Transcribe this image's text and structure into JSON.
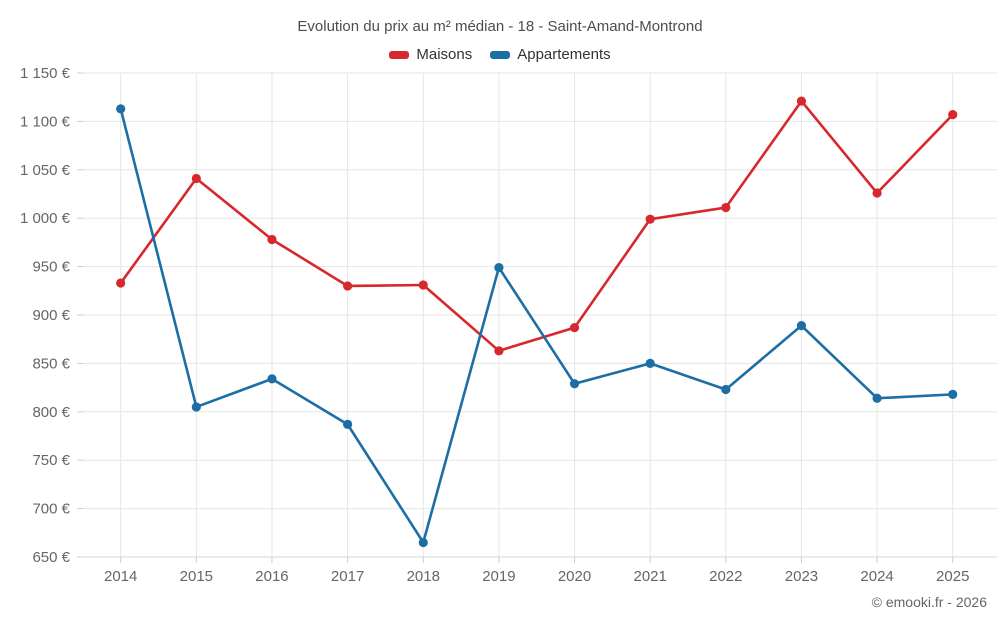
{
  "footer": "© emooki.fr - 2026",
  "styles": {
    "grid_color": "#e6e6e6",
    "axis_line_color": "#d4d4d4",
    "tick_color": "#cccccc",
    "label_color": "#666666",
    "title_color": "#4d4d4d",
    "background": "#ffffff"
  },
  "chart_data": {
    "type": "line",
    "title": "Evolution du prix au m² médian - 18 - Saint-Amand-Montrond",
    "categories": [
      "2014",
      "2015",
      "2016",
      "2017",
      "2018",
      "2019",
      "2020",
      "2021",
      "2022",
      "2023",
      "2024",
      "2025"
    ],
    "series": [
      {
        "name": "Maisons",
        "color": "#d7282e",
        "values": [
          933,
          1041,
          978,
          930,
          931,
          863,
          887,
          999,
          1011,
          1121,
          1026,
          1107
        ]
      },
      {
        "name": "Appartements",
        "color": "#1c6ea4",
        "values": [
          1113,
          805,
          834,
          787,
          665,
          949,
          829,
          850,
          823,
          889,
          814,
          818
        ]
      }
    ],
    "ylim": [
      650,
      1150
    ],
    "y_ticks": [
      650,
      700,
      750,
      800,
      850,
      900,
      950,
      1000,
      1050,
      1100,
      1150
    ],
    "y_tick_suffix": " €",
    "grid": true,
    "legend_position": "top",
    "marker": "circle"
  }
}
